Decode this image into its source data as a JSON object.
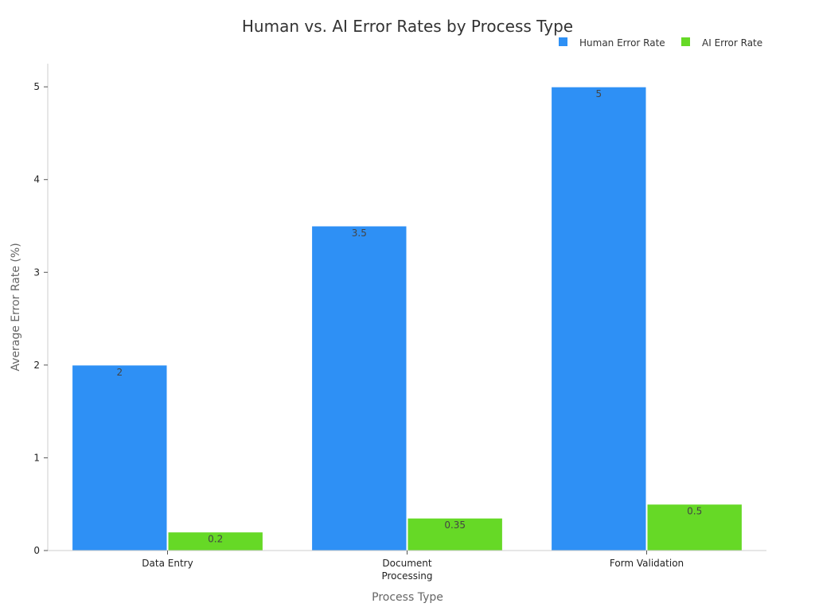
{
  "chart_data": {
    "type": "bar",
    "title": "Human vs. AI Error Rates by Process Type",
    "xlabel": "Process Type",
    "ylabel": "Average Error Rate (%)",
    "categories": [
      [
        "Data Entry"
      ],
      [
        "Document",
        "Processing"
      ],
      [
        "Form Validation"
      ]
    ],
    "series": [
      {
        "name": "Human Error Rate",
        "values": [
          2,
          3.5,
          5
        ],
        "color": "#2e90f5"
      },
      {
        "name": "AI Error Rate",
        "values": [
          0.2,
          0.35,
          0.5
        ],
        "color": "#66d926"
      }
    ],
    "data_labels": [
      [
        "2",
        "3.5",
        "5"
      ],
      [
        "0.2",
        "0.35",
        "0.5"
      ]
    ],
    "ylim": [
      0,
      5.25
    ],
    "yticks": [
      0,
      1,
      2,
      3,
      4,
      5
    ],
    "grid": false,
    "legend": "top-right"
  }
}
